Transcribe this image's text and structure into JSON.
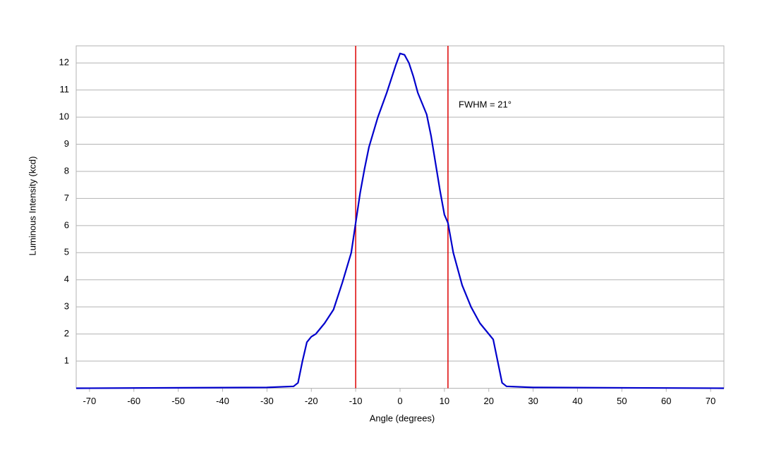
{
  "chart_data": {
    "type": "line",
    "x_label": "Angle (degrees)",
    "y_label": "Luminous Intensity (kcd)",
    "annotation": "FWHM = 21°",
    "x": [
      -73,
      -30,
      -24,
      -23,
      -22,
      -21,
      -20,
      -19,
      -17,
      -15,
      -13,
      -11,
      -10,
      -9,
      -8,
      -7,
      -5,
      -3,
      -1,
      0,
      1,
      2,
      3,
      4,
      5,
      6,
      7,
      8,
      9,
      10,
      10.8,
      12,
      14,
      16,
      18,
      20,
      21,
      22,
      23,
      24,
      30,
      73
    ],
    "series": [
      {
        "name": "Luminous Intensity",
        "color": "#0000cc",
        "values": [
          0,
          0.03,
          0.07,
          0.2,
          1.0,
          1.7,
          1.9,
          2.0,
          2.4,
          2.9,
          3.9,
          5.0,
          6.1,
          7.2,
          8.1,
          8.9,
          10.0,
          10.9,
          11.9,
          12.35,
          12.3,
          12.0,
          11.5,
          10.9,
          10.5,
          10.1,
          9.3,
          8.3,
          7.3,
          6.4,
          6.1,
          5.0,
          3.8,
          3.0,
          2.4,
          2.0,
          1.8,
          1.0,
          0.2,
          0.07,
          0.03,
          0
        ]
      }
    ],
    "vlines": [
      -10,
      10.8
    ],
    "vline_color": "#dd0000",
    "xlim": [
      -73,
      73
    ],
    "xticks": [
      -70,
      -60,
      -50,
      -40,
      -30,
      -20,
      -10,
      0,
      10,
      20,
      30,
      40,
      50,
      60,
      70
    ],
    "ylim": [
      0,
      12.63
    ],
    "yticks": [
      1,
      2,
      3,
      4,
      5,
      6,
      7,
      8,
      9,
      10,
      11,
      12
    ],
    "grid": true
  }
}
